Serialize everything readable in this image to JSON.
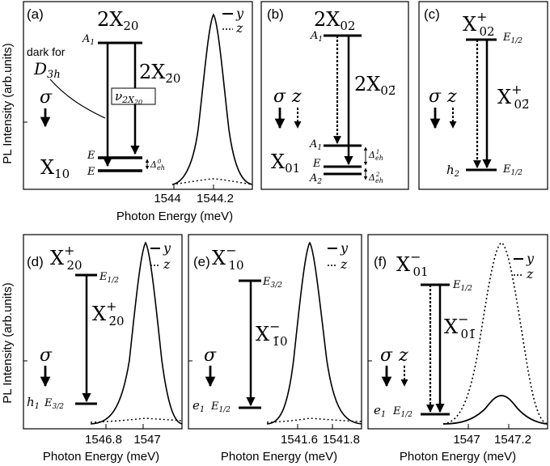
{
  "axes": {
    "ylabel": "PL Intensity (arb.units)",
    "xlabel": "Photon Energy (meV)"
  },
  "legend": {
    "solid": "y",
    "dotted": "z"
  },
  "panels": {
    "a": {
      "tag": "(a)",
      "top_state": "2X",
      "top_sub": "20",
      "top_level": "A",
      "top_level_sub": "1",
      "bottom_state": "X",
      "bottom_sub": "10",
      "bottom_level_upper": "E",
      "bottom_level_lower": "E",
      "transition": "2X",
      "transition_sub": "2̄0",
      "dark_note_line1": "dark for",
      "dark_note_sym": "D",
      "dark_note_sub": "3h",
      "nu_label": "ν",
      "nu_sub": "2X",
      "nu_subsub": "20",
      "sigma": "σ",
      "delta": "Δ",
      "delta_sub": "eh",
      "delta_sup": "0",
      "xticks": [
        "1544",
        "1544.2"
      ]
    },
    "b": {
      "tag": "(b)",
      "top_state": "2X",
      "top_sub": "02",
      "top_level": "A",
      "top_level_sub": "1",
      "bottom_state": "X",
      "bottom_sub": "01",
      "level_a1": "A",
      "level_a1_sub": "1",
      "level_e": "E",
      "level_a2": "A",
      "level_a2_sub": "2",
      "transition": "2X",
      "transition_sub": "02̄",
      "sigma": "σ",
      "z": "z",
      "delta1": "Δ",
      "delta1_sub": "eh",
      "delta1_sup": "1",
      "delta2": "Δ",
      "delta2_sub": "eh",
      "delta2_sup": "2"
    },
    "c": {
      "tag": "(c)",
      "top_state": "X",
      "top_sub": "02",
      "top_sup": "+",
      "top_level": "E",
      "top_level_sub": "1/2",
      "transition": "X",
      "transition_sub": "02̄",
      "transition_sup": "+",
      "bottom_label": "h",
      "bottom_label_sub": "2",
      "bottom_level": "E",
      "bottom_level_sub": "1/2",
      "sigma": "σ",
      "z": "z"
    },
    "d": {
      "tag": "(d)",
      "top_state": "X",
      "top_sub": "20",
      "top_sup": "+",
      "top_level": "E",
      "top_level_sub": "1/2",
      "transition": "X",
      "transition_sub": "2̄0",
      "transition_sup": "+",
      "bottom_label": "h",
      "bottom_label_sub": "1",
      "bottom_level": "E",
      "bottom_level_sub": "3/2",
      "sigma": "σ",
      "xticks": [
        "1546.8",
        "1547"
      ]
    },
    "e": {
      "tag": "(e)",
      "top_state": "X",
      "top_sub": "10",
      "top_sup": "−",
      "top_level": "E",
      "top_level_sub": "3/2",
      "transition": "X",
      "transition_sub": "1̄0",
      "transition_sup": "−",
      "bottom_label": "e",
      "bottom_label_sub": "1",
      "bottom_level": "E",
      "bottom_level_sub": "1/2",
      "sigma": "σ",
      "xticks": [
        "1541.6",
        "1541.8"
      ]
    },
    "f": {
      "tag": "(f)",
      "top_state": "X",
      "top_sub": "01",
      "top_sup": "−",
      "top_level": "E",
      "top_level_sub": "1/2",
      "transition": "X",
      "transition_sub": "01̄",
      "transition_sup": "−",
      "bottom_label": "e",
      "bottom_label_sub": "1",
      "bottom_level": "E",
      "bottom_level_sub": "1/2",
      "sigma": "σ",
      "z": "z",
      "xticks": [
        "1547",
        "1547.2"
      ]
    }
  }
}
